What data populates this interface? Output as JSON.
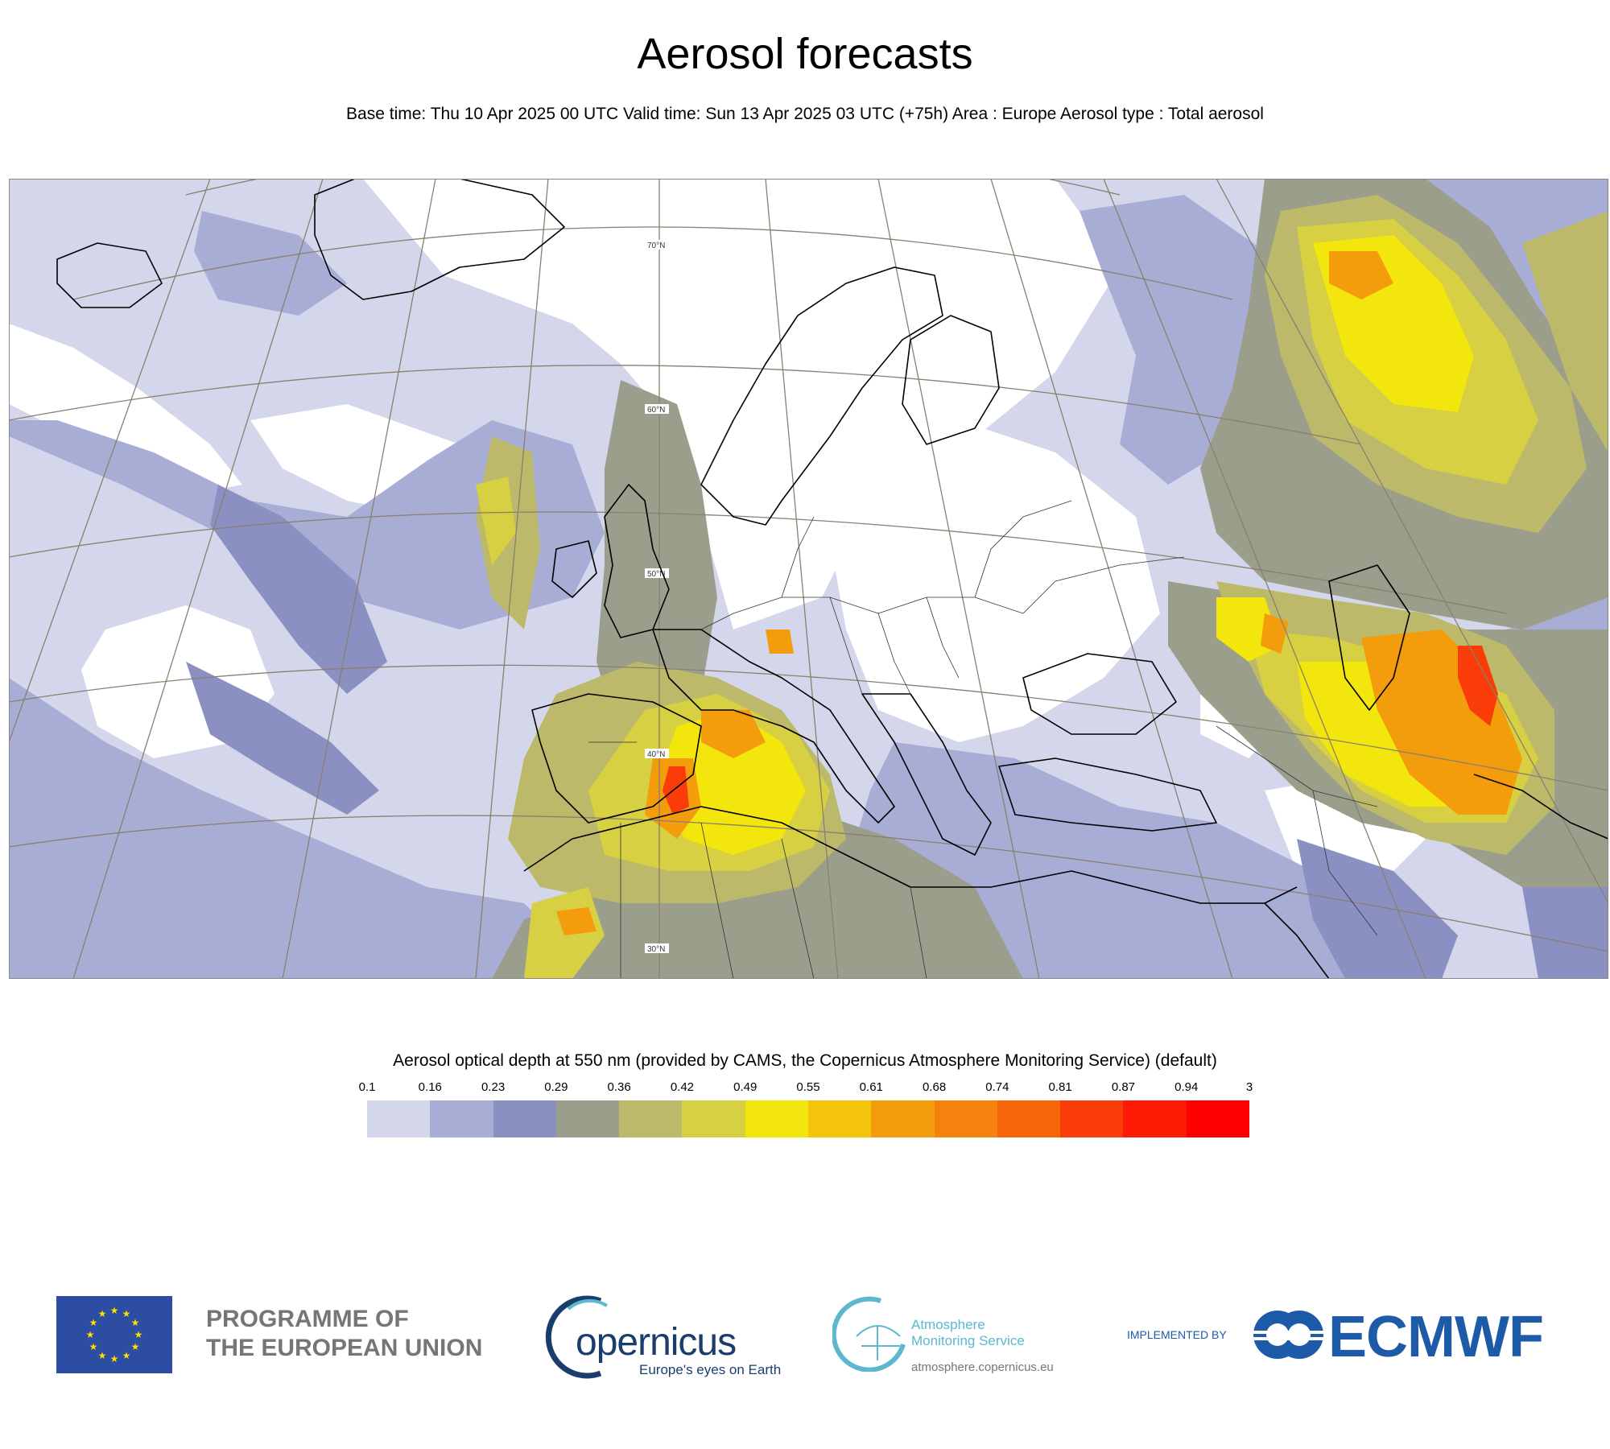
{
  "header": {
    "title": "Aerosol forecasts",
    "subtitle": "Base time: Thu 10 Apr 2025 00 UTC Valid time: Sun 13 Apr 2025 03 UTC (+75h) Area : Europe Aerosol type : Total aerosol"
  },
  "map": {
    "background_color": "#d4d7eb",
    "coastline_color": "#000000",
    "graticule_color": "#8a7f6e",
    "lat_labels": [
      "70°N",
      "60°N",
      "50°N",
      "40°N",
      "30°N"
    ]
  },
  "legend": {
    "title": "Aerosol optical depth at 550 nm (provided by CAMS, the Copernicus Atmosphere Monitoring Service) (default)",
    "ticks": [
      "0.1",
      "0.16",
      "0.23",
      "0.29",
      "0.36",
      "0.42",
      "0.49",
      "0.55",
      "0.61",
      "0.68",
      "0.74",
      "0.81",
      "0.87",
      "0.94",
      "3"
    ],
    "colors": [
      "#d4d7eb",
      "#a8add6",
      "#8a90c1",
      "#9c9e8c",
      "#bdb96a",
      "#d6d042",
      "#f2e60c",
      "#f4c40a",
      "#f39c0c",
      "#f5820c",
      "#f8640a",
      "#fa3c08",
      "#fd1b05",
      "#ff0000"
    ]
  },
  "footer": {
    "eu_line1": "PROGRAMME OF",
    "eu_line2": "THE EUROPEAN UNION",
    "copernicus_word": "opernicus",
    "copernicus_tagline": "Europe's eyes on Earth",
    "cams_line1": "Atmosphere",
    "cams_line2": "Monitoring Service",
    "cams_url": "atmosphere.copernicus.eu",
    "implemented_by": "IMPLEMENTED BY",
    "ecmwf": "ECMWF"
  }
}
